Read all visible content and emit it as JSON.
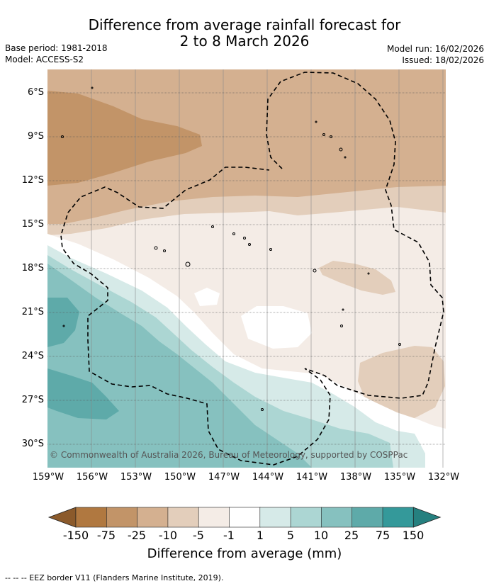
{
  "title_line1": "Difference from average rainfall forecast for",
  "title_line2": "2 to 8 March 2026",
  "base_period": "Base period: 1981-2018",
  "model": "Model: ACCESS-S2",
  "model_run": "Model run: 16/02/2026",
  "issued": "Issued: 18/02/2026",
  "copyright": "© Commonwealth of Australia 2026, Bureau of Meteorology, supported by COSPPac",
  "lat_labels": [
    "6°S",
    "9°S",
    "12°S",
    "15°S",
    "18°S",
    "21°S",
    "24°S",
    "27°S",
    "30°S"
  ],
  "lon_labels": [
    "159°W",
    "156°W",
    "153°W",
    "150°W",
    "147°W",
    "144°W",
    "141°W",
    "138°W",
    "135°W",
    "132°W"
  ],
  "colorbar": {
    "label": "Difference from average (mm)",
    "ticks": [
      "-150",
      "-75",
      "-25",
      "-10",
      "-5",
      "-1",
      "1",
      "5",
      "10",
      "25",
      "75",
      "150"
    ],
    "colors": [
      "#8b5a2b",
      "#b07840",
      "#c29468",
      "#d4b090",
      "#e3cebb",
      "#f4ece6",
      "#ffffff",
      "#d6eae8",
      "#acd6d3",
      "#86c1bf",
      "#5eaaa9",
      "#34999a",
      "#25807f"
    ]
  },
  "legend_note": "--  --  -- EEZ border V11 (Flanders Marine Institute, 2019)."
}
